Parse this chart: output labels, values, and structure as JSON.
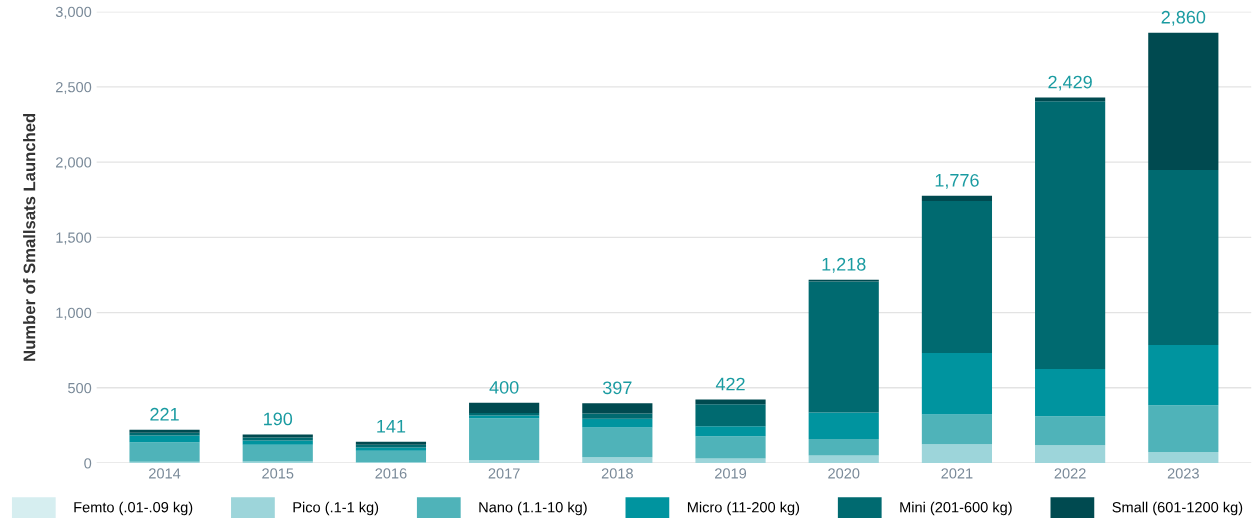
{
  "chart_data": {
    "type": "bar",
    "stacked": true,
    "ylabel": "Number of Smallsats Launched",
    "categories": [
      "2014",
      "2015",
      "2016",
      "2017",
      "2018",
      "2019",
      "2020",
      "2021",
      "2022",
      "2023"
    ],
    "series": [
      {
        "name": "Femto (.01-.09 kg)",
        "color": "#d6eef0",
        "values": [
          0,
          0,
          0,
          0,
          0,
          0,
          0,
          0,
          0,
          0
        ]
      },
      {
        "name": "Pico (.1-1 kg)",
        "color": "#9dd5da",
        "values": [
          8,
          10,
          7,
          18,
          38,
          30,
          50,
          125,
          118,
          73
        ]
      },
      {
        "name": "Nano (1.1-10 kg)",
        "color": "#4fb3b9",
        "values": [
          130,
          112,
          75,
          280,
          198,
          148,
          109,
          198,
          193,
          311
        ]
      },
      {
        "name": "Micro (11-200 kg)",
        "color": "#00949f",
        "values": [
          45,
          28,
          22,
          18,
          59,
          66,
          177,
          409,
          314,
          400
        ]
      },
      {
        "name": "Mini (201-600 kg)",
        "color": "#006a70",
        "values": [
          18,
          20,
          18,
          16,
          34,
          146,
          870,
          1009,
          1780,
          1164
        ]
      },
      {
        "name": "Small (601-1200 kg)",
        "color": "#004a50",
        "values": [
          20,
          20,
          19,
          68,
          68,
          32,
          12,
          35,
          24,
          912
        ]
      }
    ],
    "totals": [
      "221",
      "190",
      "141",
      "400",
      "397",
      "422",
      "1,218",
      "1,776",
      "2,429",
      "2,860"
    ],
    "ylim": [
      0,
      3000
    ],
    "yticks": [
      {
        "value": 0,
        "label": "0"
      },
      {
        "value": 500,
        "label": "500"
      },
      {
        "value": 1000,
        "label": "1,000"
      },
      {
        "value": 1500,
        "label": "1,500"
      },
      {
        "value": 2000,
        "label": "2,000"
      },
      {
        "value": 2500,
        "label": "2,500"
      },
      {
        "value": 3000,
        "label": "3,000"
      }
    ],
    "grid": "y",
    "legend": "bottom"
  }
}
